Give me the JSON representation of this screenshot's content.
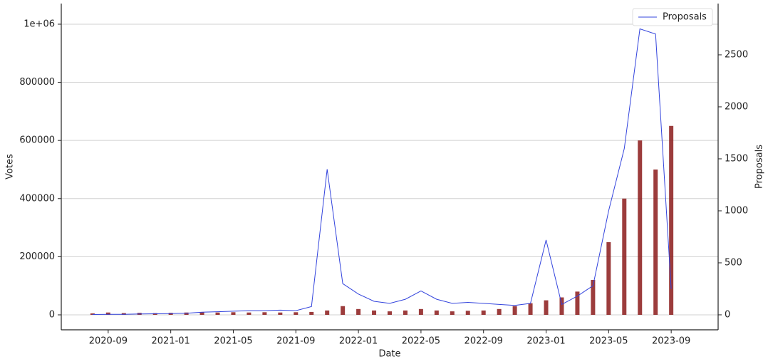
{
  "chart_data": {
    "type": "bar-line",
    "xlabel": "Date",
    "ylabel": "Votes",
    "y2label": "Proposals",
    "x": [
      "2020-08",
      "2020-09",
      "2020-10",
      "2020-11",
      "2020-12",
      "2021-01",
      "2021-02",
      "2021-03",
      "2021-04",
      "2021-05",
      "2021-06",
      "2021-07",
      "2021-08",
      "2021-09",
      "2021-10",
      "2021-11",
      "2021-12",
      "2022-01",
      "2022-02",
      "2022-03",
      "2022-04",
      "2022-05",
      "2022-06",
      "2022-07",
      "2022-08",
      "2022-09",
      "2022-10",
      "2022-11",
      "2022-12",
      "2023-01",
      "2023-02",
      "2023-03",
      "2023-04",
      "2023-05",
      "2023-06",
      "2023-07",
      "2023-08",
      "2023-09"
    ],
    "series": [
      {
        "type": "bar",
        "color": "#8b1a1a",
        "values": [
          5000,
          8000,
          6000,
          7000,
          6000,
          7000,
          8000,
          9000,
          8000,
          9000,
          8000,
          9000,
          8000,
          9000,
          10000,
          15000,
          30000,
          20000,
          15000,
          12000,
          15000,
          20000,
          15000,
          12000,
          14000,
          15000,
          20000,
          30000,
          40000,
          50000,
          60000,
          80000,
          120000,
          250000,
          400000,
          600000,
          500000,
          650000
        ]
      },
      {
        "type": "line",
        "name": "Proposals",
        "color": "#3344dd",
        "axis": "y2",
        "values": [
          3,
          5,
          5,
          8,
          10,
          12,
          15,
          25,
          30,
          35,
          40,
          40,
          45,
          40,
          80,
          1400,
          300,
          200,
          130,
          110,
          150,
          230,
          150,
          110,
          120,
          110,
          100,
          90,
          110,
          720,
          100,
          180,
          280,
          1000,
          1600,
          2750,
          2700,
          250
        ]
      }
    ],
    "xlim": [
      "2020-06",
      "2023-12"
    ],
    "xticks": [
      "2020-09",
      "2021-01",
      "2021-05",
      "2021-09",
      "2022-01",
      "2022-05",
      "2022-09",
      "2023-01",
      "2023-05",
      "2023-09"
    ],
    "ylim": [
      -51500,
      1071000
    ],
    "yticks": [
      0,
      200000,
      400000,
      600000,
      800000,
      {
        "value": 1000000,
        "label": "1e+06"
      }
    ],
    "y2lim": [
      -144,
      2993
    ],
    "y2ticks": [
      0,
      500,
      1000,
      1500,
      2000,
      2500
    ],
    "grid": true,
    "legend": "upper right"
  }
}
